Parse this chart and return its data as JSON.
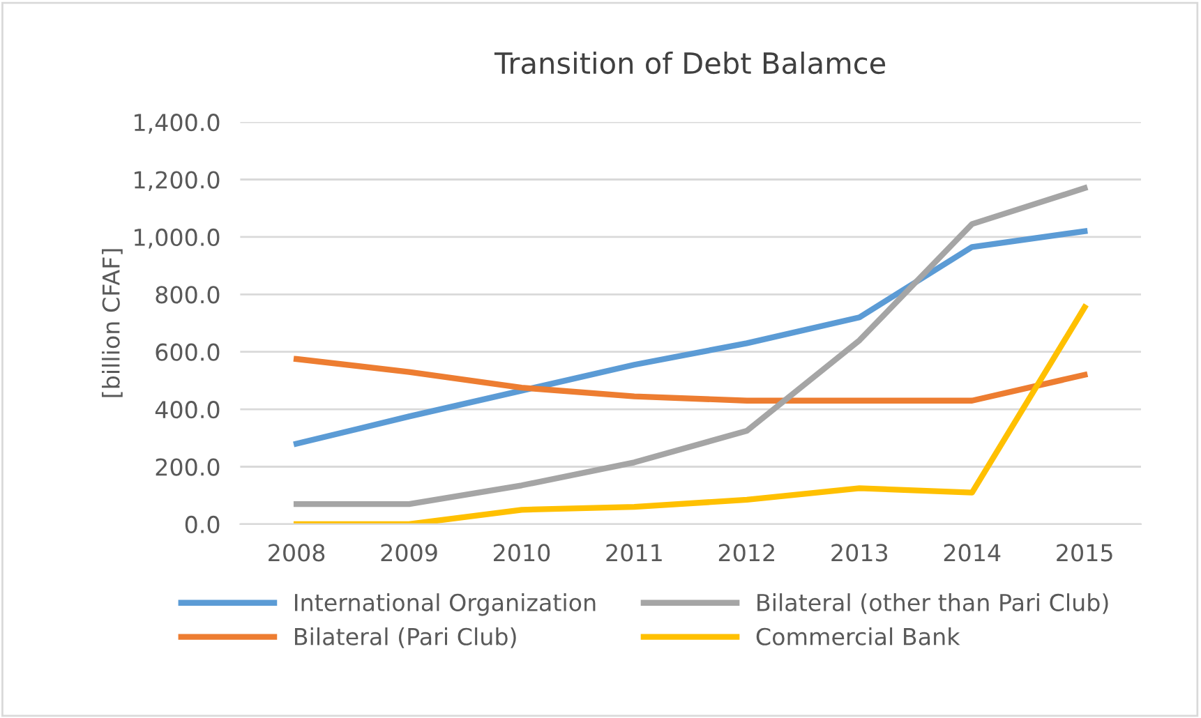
{
  "chart_data": {
    "type": "line",
    "title": "Transition of Debt Balamce",
    "ylabel": "[billion CFAF]",
    "categories": [
      "2008",
      "2009",
      "2010",
      "2011",
      "2012",
      "2013",
      "2014",
      "2015"
    ],
    "series": [
      {
        "name": "International Organization",
        "color": "#5b9bd5",
        "values": [
          280,
          375,
          465,
          555,
          630,
          720,
          965,
          1020
        ]
      },
      {
        "name": "Bilateral (Pari Club)",
        "color": "#ed7d31",
        "values": [
          575,
          530,
          475,
          445,
          430,
          430,
          430,
          520
        ]
      },
      {
        "name": "Bilateral (other than Pari Club)",
        "color": "#a5a5a5",
        "values": [
          70,
          70,
          135,
          215,
          325,
          640,
          1045,
          1170
        ]
      },
      {
        "name": "Commercial Bank",
        "color": "#ffc000",
        "values": [
          0,
          0,
          50,
          60,
          85,
          125,
          110,
          755
        ]
      }
    ],
    "ylim": [
      0,
      1400
    ],
    "yticks": [
      {
        "value": 0,
        "label": "0.0"
      },
      {
        "value": 200,
        "label": "200.0"
      },
      {
        "value": 400,
        "label": "400.0"
      },
      {
        "value": 600,
        "label": "600.0"
      },
      {
        "value": 800,
        "label": "800.0"
      },
      {
        "value": 1000,
        "label": "1,000.0"
      },
      {
        "value": 1200,
        "label": "1,200.0"
      },
      {
        "value": 1400,
        "label": "1,400.0"
      }
    ],
    "grid": "y",
    "legend": "bottom",
    "marker": "none",
    "line_style": "solid"
  }
}
